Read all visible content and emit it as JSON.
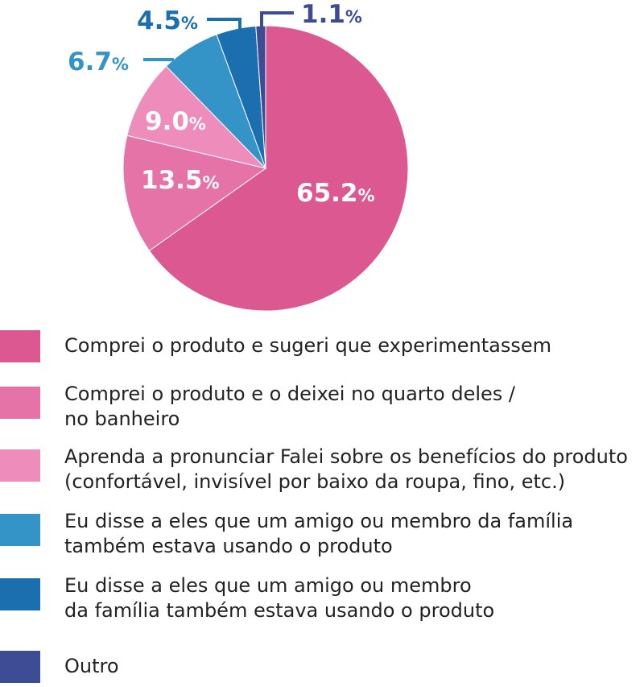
{
  "chart_data": {
    "type": "pie",
    "slices": [
      {
        "label": "Comprei o produto e sugeri que experimentassem",
        "value": 65.2,
        "value_text": "65.2",
        "color": "#dc5891"
      },
      {
        "label": "Comprei o produto e o deixei no quarto deles /\nno banheiro",
        "value": 13.5,
        "value_text": "13.5",
        "color": "#e573a8"
      },
      {
        "label": "Aprenda a pronunciar Falei sobre os benefícios do produto\n(confortável, invisível por baixo da roupa, fino, etc.)",
        "value": 9.0,
        "value_text": "9.0",
        "color": "#ee8cbb"
      },
      {
        "label": "Eu disse a eles que um amigo ou membro da família\ntambém estava usando o produto",
        "value": 6.7,
        "value_text": "6.7",
        "color": "#3494c7"
      },
      {
        "label": "Eu disse a eles que um amigo ou membro\nda família também estava usando o produto",
        "value": 4.5,
        "value_text": "4.5",
        "color": "#1b6fae"
      },
      {
        "label": "Outro",
        "value": 1.1,
        "value_text": "1.1",
        "color": "#3e4c96"
      }
    ],
    "unit": "%",
    "legend_position": "bottom"
  }
}
